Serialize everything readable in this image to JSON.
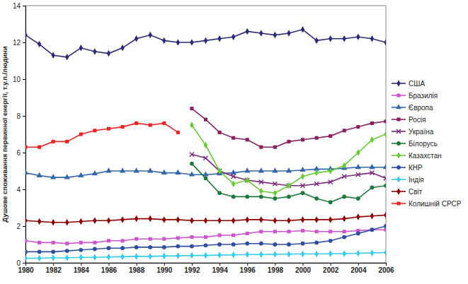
{
  "chart_data": {
    "type": "line",
    "y_label": "Душове споживання первинної енергії, т.у.п./людини",
    "x": [
      1980,
      1981,
      1982,
      1983,
      1984,
      1985,
      1986,
      1987,
      1988,
      1989,
      1990,
      1991,
      1992,
      1993,
      1994,
      1995,
      1996,
      1997,
      1998,
      1999,
      2000,
      2001,
      2002,
      2003,
      2004,
      2005,
      2006
    ],
    "xlim": [
      1980,
      2006
    ],
    "xticks": [
      1980,
      1982,
      1984,
      1986,
      1988,
      1990,
      1992,
      1994,
      1996,
      1998,
      2000,
      2002,
      2004,
      2006
    ],
    "ylim": [
      0,
      14
    ],
    "yticks": [
      0,
      2,
      4,
      6,
      8,
      10,
      12,
      14
    ],
    "grid": false,
    "legend": "right",
    "series": [
      {
        "name": "США",
        "color": "#2b2b7a",
        "marker": "diamond",
        "values": [
          12.4,
          11.9,
          11.3,
          11.2,
          11.7,
          11.5,
          11.4,
          11.7,
          12.2,
          12.4,
          12.1,
          12.0,
          12.0,
          12.1,
          12.2,
          12.3,
          12.6,
          12.5,
          12.4,
          12.5,
          12.7,
          12.1,
          12.2,
          12.2,
          12.3,
          12.2,
          12.0
        ]
      },
      {
        "name": "Бразилія",
        "color": "#cc55cc",
        "marker": "square",
        "values": [
          1.2,
          1.1,
          1.1,
          1.05,
          1.1,
          1.1,
          1.2,
          1.2,
          1.3,
          1.3,
          1.3,
          1.35,
          1.4,
          1.4,
          1.5,
          1.5,
          1.6,
          1.7,
          1.7,
          1.7,
          1.75,
          1.7,
          1.7,
          1.7,
          1.75,
          1.8,
          1.8
        ]
      },
      {
        "name": "Європа",
        "color": "#3366aa",
        "marker": "triangle",
        "values": [
          4.9,
          4.75,
          4.65,
          4.65,
          4.75,
          4.85,
          5.0,
          5.0,
          5.0,
          5.0,
          4.9,
          4.9,
          4.8,
          4.8,
          4.85,
          4.9,
          5.0,
          5.0,
          5.0,
          5.0,
          5.05,
          5.1,
          5.1,
          5.15,
          5.2,
          5.2,
          5.2
        ]
      },
      {
        "name": "Росія",
        "color": "#8b2060",
        "marker": "square",
        "values": [
          null,
          null,
          null,
          null,
          null,
          null,
          null,
          null,
          null,
          null,
          null,
          null,
          8.4,
          7.8,
          7.1,
          6.8,
          6.7,
          6.3,
          6.3,
          6.6,
          6.7,
          6.8,
          6.9,
          7.2,
          7.4,
          7.6,
          7.7
        ]
      },
      {
        "name": "Україна",
        "color": "#7b2a7b",
        "marker": "x",
        "values": [
          null,
          null,
          null,
          null,
          null,
          null,
          null,
          null,
          null,
          null,
          null,
          null,
          5.9,
          5.7,
          5.0,
          4.7,
          4.5,
          4.4,
          4.3,
          4.2,
          4.2,
          4.3,
          4.4,
          4.7,
          4.8,
          4.9,
          4.6
        ]
      },
      {
        "name": "Білорусь",
        "color": "#1e7a3c",
        "marker": "circle",
        "values": [
          null,
          null,
          null,
          null,
          null,
          null,
          null,
          null,
          null,
          null,
          null,
          null,
          5.4,
          4.6,
          3.8,
          3.6,
          3.6,
          3.6,
          3.5,
          3.6,
          3.8,
          3.5,
          3.3,
          3.6,
          3.5,
          4.1,
          4.2
        ]
      },
      {
        "name": "Казахстан",
        "color": "#66cc33",
        "marker": "diamond",
        "values": [
          null,
          null,
          null,
          null,
          null,
          null,
          null,
          null,
          null,
          null,
          null,
          null,
          7.5,
          6.4,
          5.0,
          4.3,
          4.5,
          3.9,
          3.8,
          4.2,
          4.7,
          4.9,
          5.0,
          5.3,
          6.0,
          6.7,
          7.0
        ]
      },
      {
        "name": "КНР",
        "color": "#2e4fa0",
        "marker": "circle",
        "values": [
          0.6,
          0.6,
          0.6,
          0.65,
          0.7,
          0.75,
          0.8,
          0.8,
          0.85,
          0.85,
          0.85,
          0.9,
          0.9,
          0.95,
          1.0,
          1.0,
          1.05,
          1.05,
          1.0,
          1.0,
          1.05,
          1.1,
          1.2,
          1.4,
          1.6,
          1.8,
          2.0
        ]
      },
      {
        "name": "Індія",
        "color": "#33ccee",
        "marker": "diamond",
        "values": [
          0.25,
          0.25,
          0.27,
          0.27,
          0.3,
          0.3,
          0.32,
          0.33,
          0.35,
          0.35,
          0.37,
          0.38,
          0.4,
          0.4,
          0.42,
          0.43,
          0.45,
          0.45,
          0.46,
          0.47,
          0.48,
          0.48,
          0.49,
          0.5,
          0.52,
          0.54,
          0.56
        ]
      },
      {
        "name": "Світ",
        "color": "#8b0000",
        "marker": "diamond",
        "values": [
          2.3,
          2.25,
          2.2,
          2.2,
          2.25,
          2.3,
          2.3,
          2.35,
          2.4,
          2.4,
          2.35,
          2.35,
          2.3,
          2.3,
          2.3,
          2.3,
          2.35,
          2.35,
          2.3,
          2.3,
          2.35,
          2.35,
          2.35,
          2.4,
          2.5,
          2.55,
          2.6
        ]
      },
      {
        "name": "Колишній СРСР",
        "color": "#ee2222",
        "marker": "square",
        "values": [
          6.3,
          6.3,
          6.6,
          6.6,
          7.0,
          7.2,
          7.3,
          7.4,
          7.6,
          7.5,
          7.6,
          7.1,
          null,
          null,
          null,
          null,
          null,
          null,
          null,
          null,
          null,
          null,
          null,
          null,
          null,
          null,
          null
        ]
      }
    ]
  }
}
